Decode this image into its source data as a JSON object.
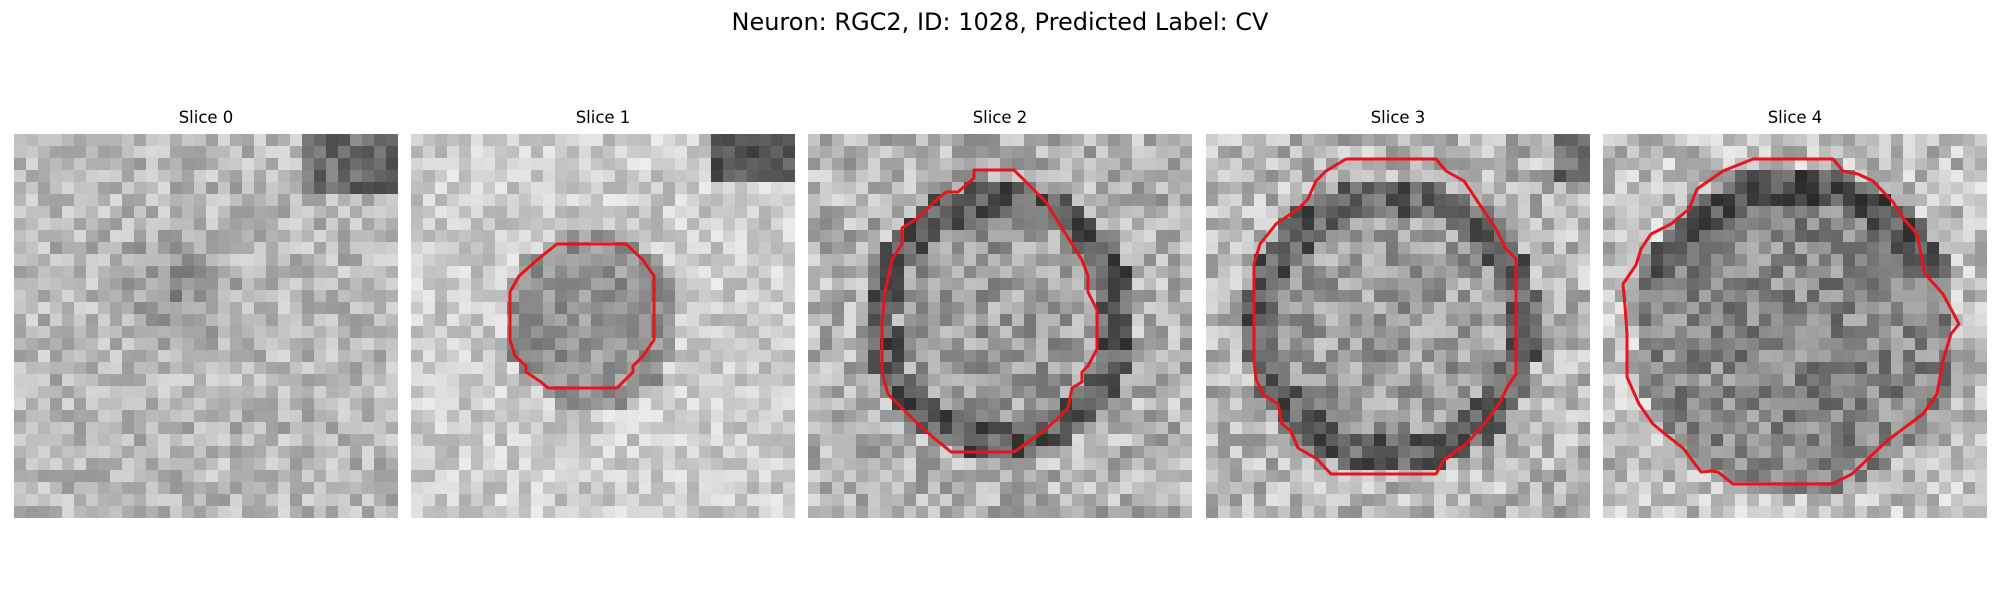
{
  "figure": {
    "title": "Neuron: RGC2, ID: 1028, Predicted Label: CV"
  },
  "colors": {
    "contour": "#e8141c",
    "background": "#ffffff"
  },
  "slices": [
    {
      "label": "Slice 0",
      "has_contour": false
    },
    {
      "label": "Slice 1",
      "has_contour": true
    },
    {
      "label": "Slice 2",
      "has_contour": true
    },
    {
      "label": "Slice 3",
      "has_contour": true
    },
    {
      "label": "Slice 4",
      "has_contour": true
    }
  ]
}
